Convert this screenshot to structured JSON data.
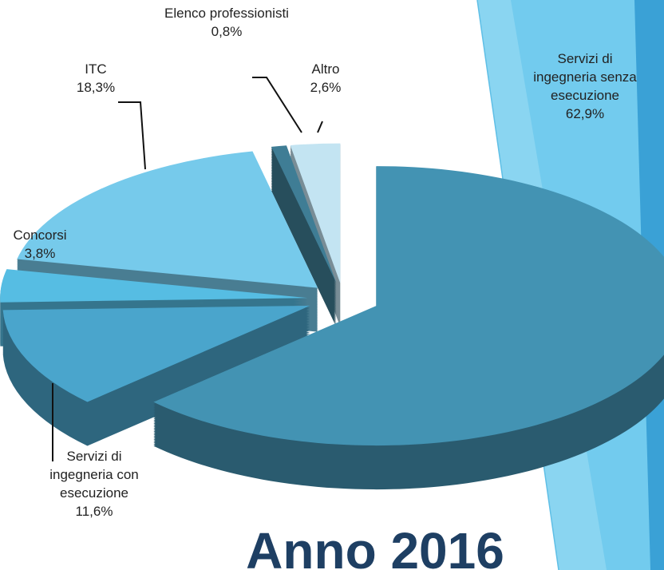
{
  "chart_data": {
    "type": "pie",
    "title": "Anno 2016",
    "categories": [
      "Servizi di ingegneria senza esecuzione",
      "Servizi di ingegneria con esecuzione",
      "Concorsi",
      "ITC",
      "Elenco professionisti",
      "Altro"
    ],
    "values": [
      62.9,
      11.6,
      3.8,
      18.3,
      0.8,
      2.6
    ],
    "value_labels": [
      "62,9%",
      "11,6%",
      "3,8%",
      "18,3%",
      "0,8%",
      "2,6%"
    ],
    "colors": [
      "#4393b3",
      "#4aa5cc",
      "#56bde3",
      "#76caeb",
      "#3f7d95",
      "#c3e4f2"
    ]
  }
}
